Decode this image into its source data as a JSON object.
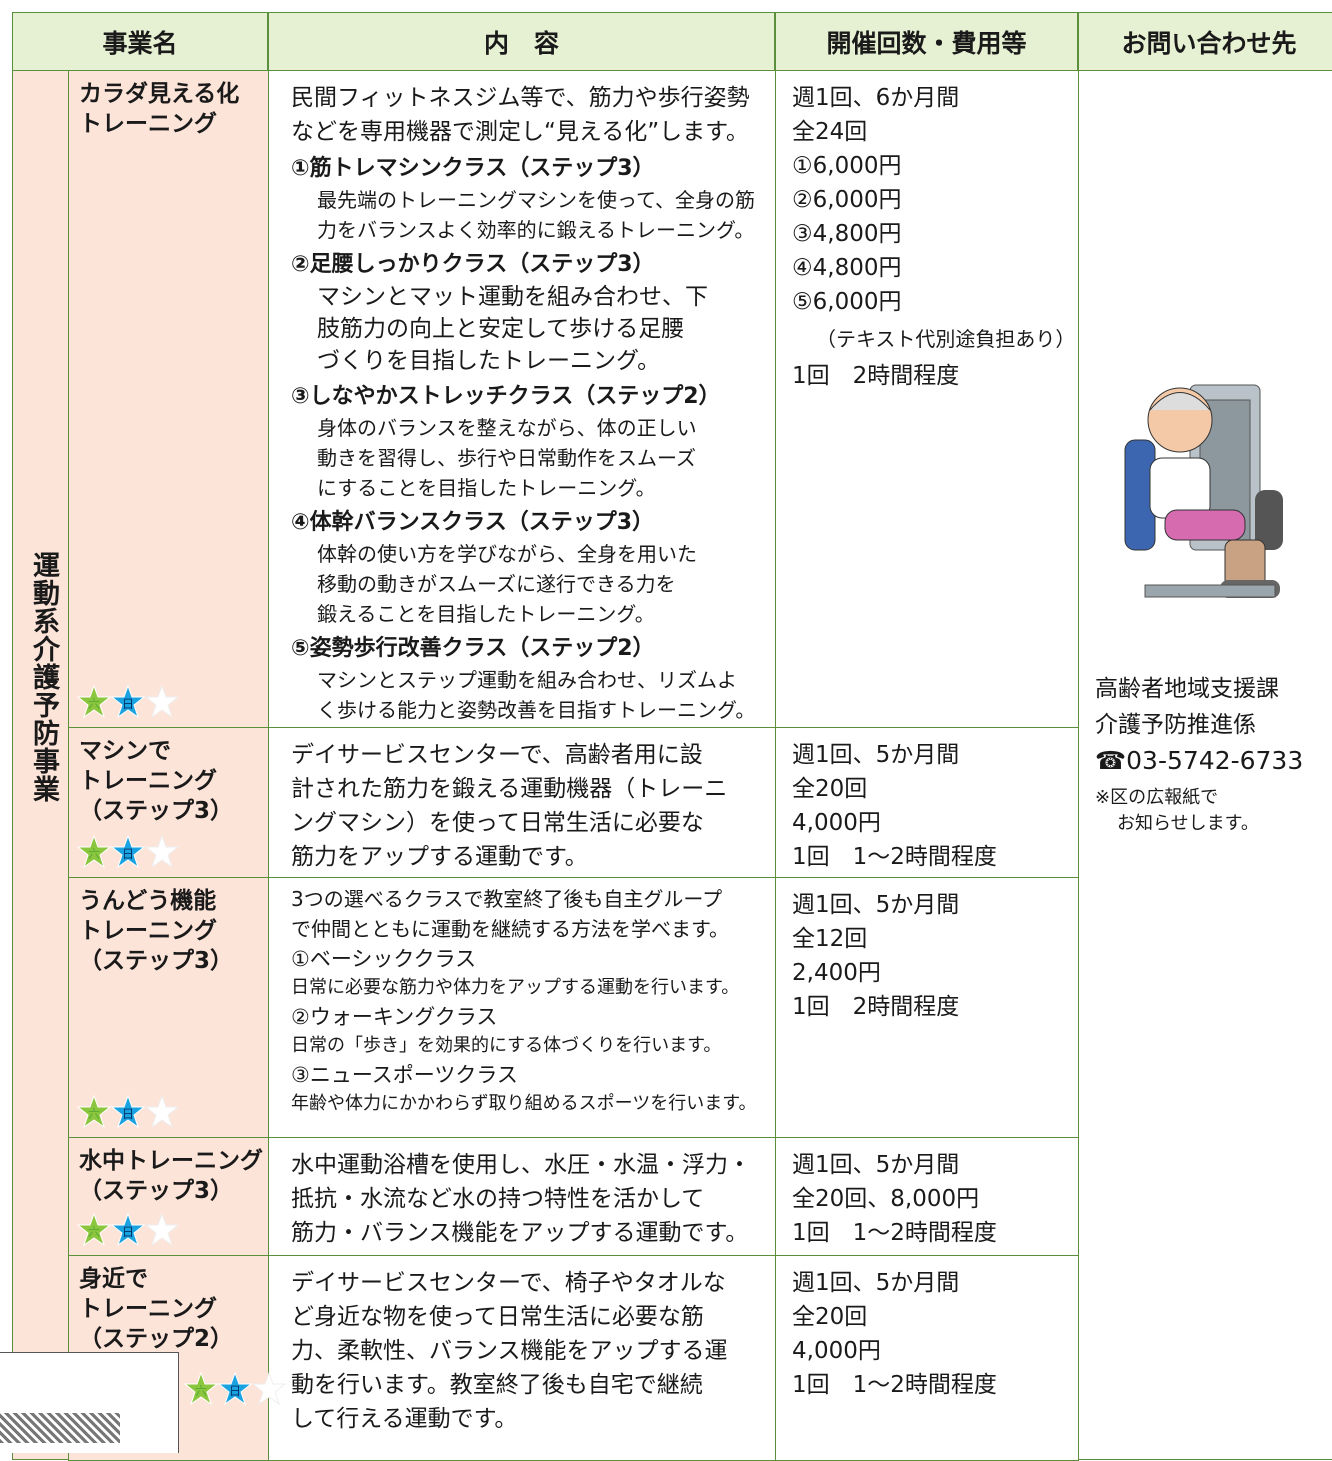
{
  "header": [
    "事業名",
    "内　容",
    "開催回数・費用等",
    "お問い合わせ先"
  ],
  "category": "運動系介護予防事業",
  "badges": [
    "六",
    "日"
  ],
  "rows": [
    {
      "name": [
        "カラダ見える化",
        "トレーニング"
      ],
      "content": {
        "intro": [
          "民間フィットネスジム等で、筋力や歩行姿勢",
          "などを専用機器で測定し“見える化”します。"
        ],
        "items": [
          {
            "title": "①筋トレマシンクラス（ステップ3）",
            "lines": [
              "最先端のトレーニングマシンを使って、全身の筋",
              "力をバランスよく効率的に鍛えるトレーニング。"
            ]
          },
          {
            "title": "②足腰しっかりクラス（ステップ3）",
            "lines": [
              "マシンとマット運動を組み合わせ、下",
              "肢筋力の向上と安定して歩ける足腰",
              "づくりを目指したトレーニング。"
            ]
          },
          {
            "title": "③しなやかストレッチクラス（ステップ2）",
            "lines": [
              "身体のバランスを整えながら、体の正しい",
              "動きを習得し、歩行や日常動作をスムーズ",
              "にすることを目指したトレーニング。"
            ]
          },
          {
            "title": "④体幹バランスクラス（ステップ3）",
            "lines": [
              "体幹の使い方を学びながら、全身を用いた",
              "移動の動きがスムーズに遂行できる力を",
              "鍛えることを目指したトレーニング。"
            ]
          },
          {
            "title": "⑤姿勢歩行改善クラス（ステップ2）",
            "lines": [
              "マシンとステップ運動を組み合わせ、リズムよ",
              "く歩ける能力と姿勢改善を目指すトレーニング。"
            ]
          }
        ]
      },
      "cost": [
        "週1回、6か月間",
        "全24回",
        "①6,000円",
        "②6,000円",
        "③4,800円",
        "④4,800円",
        "⑤6,000円",
        "（テキスト代別途負担あり）",
        "1回　2時間程度"
      ]
    },
    {
      "name": [
        "マシンで",
        "トレーニング",
        "（ステップ3）"
      ],
      "content": {
        "intro": [
          "デイサービスセンターで、高齢者用に設",
          "計された筋力を鍛える運動機器（トレーニ",
          "ングマシン）を使って日常生活に必要な",
          "筋力をアップする運動です。"
        ],
        "items": []
      },
      "cost": [
        "週1回、5か月間",
        "全20回",
        "4,000円",
        "1回　1〜2時間程度"
      ]
    },
    {
      "name": [
        "うんどう機能",
        "トレーニング",
        "（ステップ3）"
      ],
      "content": {
        "intro": [
          "3つの選べるクラスで教室終了後も自主グループ",
          "で仲間とともに運動を継続する方法を学べます。"
        ],
        "items": [
          {
            "title": "①ベーシッククラス",
            "lines": [
              "日常に必要な筋力や体力をアップする運動を行います。"
            ]
          },
          {
            "title": "②ウォーキングクラス",
            "lines": [
              "日常の「歩き」を効果的にする体づくりを行います。"
            ]
          },
          {
            "title": "③ニュースポーツクラス",
            "lines": [
              "年齢や体力にかかわらず取り組めるスポーツを行います。"
            ]
          }
        ]
      },
      "cost": [
        "週1回、5か月間",
        "全12回",
        "2,400円",
        "1回　2時間程度"
      ]
    },
    {
      "name": [
        "水中トレーニング",
        "（ステップ3）"
      ],
      "content": {
        "intro": [
          "水中運動浴槽を使用し、水圧・水温・浮力・",
          "抵抗・水流など水の持つ特性を活かして",
          "筋力・バランス機能をアップする運動です。"
        ],
        "items": []
      },
      "cost": [
        "週1回、5か月間",
        "全20回、8,000円",
        "1回　1〜2時間程度"
      ]
    },
    {
      "name": [
        "身近で",
        "トレーニング",
        "（ステップ2）"
      ],
      "content": {
        "intro": [
          "デイサービスセンターで、椅子やタオルな",
          "ど身近な物を使って日常生活に必要な筋",
          "力、柔軟性、バランス機能をアップする運",
          "動を行います。教室終了後も自宅で継続",
          "して行える運動です。"
        ],
        "items": []
      },
      "cost": [
        "週1回、5か月間",
        "全20回",
        "4,000円",
        "1回　1〜2時間程度"
      ]
    }
  ],
  "contact": {
    "lines": [
      "高齢者地域支援課",
      "介護予防推進係",
      "☎03-5742-6733"
    ],
    "note": [
      "※区の広報紙で",
      "お知らせします。"
    ]
  }
}
